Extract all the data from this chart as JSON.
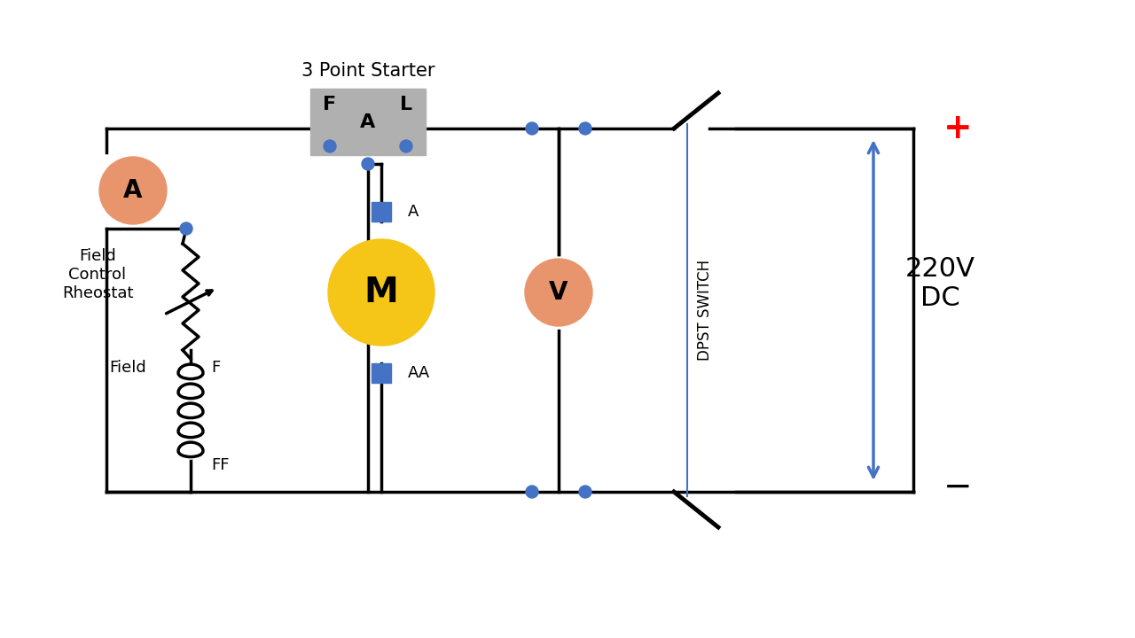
{
  "bg_color": "#ffffff",
  "wire_color": "#000000",
  "node_color": "#4472c4",
  "component_line_color": "#000000",
  "ammeter_color": "#e8956d",
  "motor_color": "#f5c518",
  "voltmeter_color": "#e8956d",
  "starter_color": "#b0b0b0",
  "blue_arrow_color": "#4472c4",
  "plus_color": "#ff0000",
  "title": "3 Point Starter",
  "label_220v": "220V\nDC",
  "label_dpst": "DPST SWITCH",
  "label_field_control": "Field\nControl\nRheostat",
  "label_field": "Field",
  "label_F": "F",
  "label_L": "L",
  "label_A_starter": "A",
  "label_A_motor": "A",
  "label_AA_motor": "AA",
  "label_FF": "FF",
  "label_F_field": "F"
}
